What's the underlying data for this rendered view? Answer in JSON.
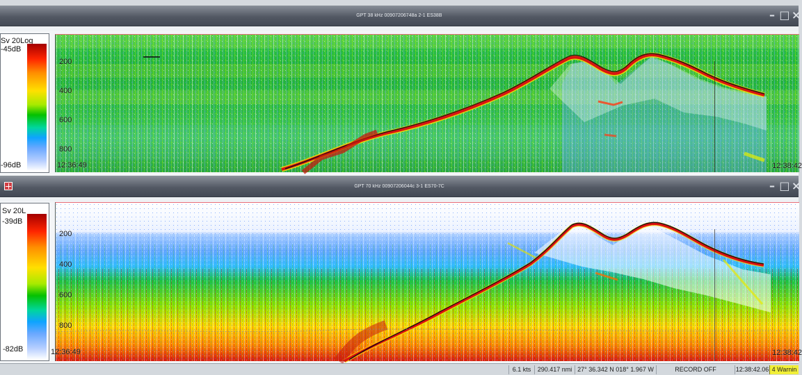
{
  "echogram_windows": [
    {
      "title": "GPT 38 kHz 00907206748a 2-1 ES38B",
      "scale_label": "Sv 20Log",
      "scale_max": "-45dB",
      "scale_min": "-96dB",
      "depth_labels": [
        "200",
        "400",
        "600",
        "800"
      ],
      "start_time": "12:36:49",
      "end_time": "12:38:42"
    },
    {
      "title": "GPT 70 kHz 00907206044c 3-1 ES70-7C",
      "scale_label": "Sv 20L",
      "scale_max": "-39dB",
      "scale_min": "-82dB",
      "depth_labels": [
        "200",
        "400",
        "600",
        "800"
      ],
      "start_time": "12:36:49",
      "end_time": "12:38:42"
    }
  ],
  "statusbar": {
    "speed": "6.1 kts",
    "distance": "290.417 nmi",
    "position": "27° 36.342 N  018° 1.967 W",
    "record": "RECORD OFF",
    "time": "12:38:42.06",
    "warnings": "4 Warnin"
  },
  "colors": {
    "titlebar": "#4f5560",
    "window_bg": "#f3f5f7",
    "status_warning": "#f1ef38",
    "echo_green": "#2bb13a",
    "echo_blue": "#69a8ff",
    "echo_red": "#ff2500"
  },
  "icons": {
    "minimize": "minimize-icon",
    "maximize": "maximize-icon",
    "close": "close-icon",
    "window_system": "window-system-icon"
  }
}
